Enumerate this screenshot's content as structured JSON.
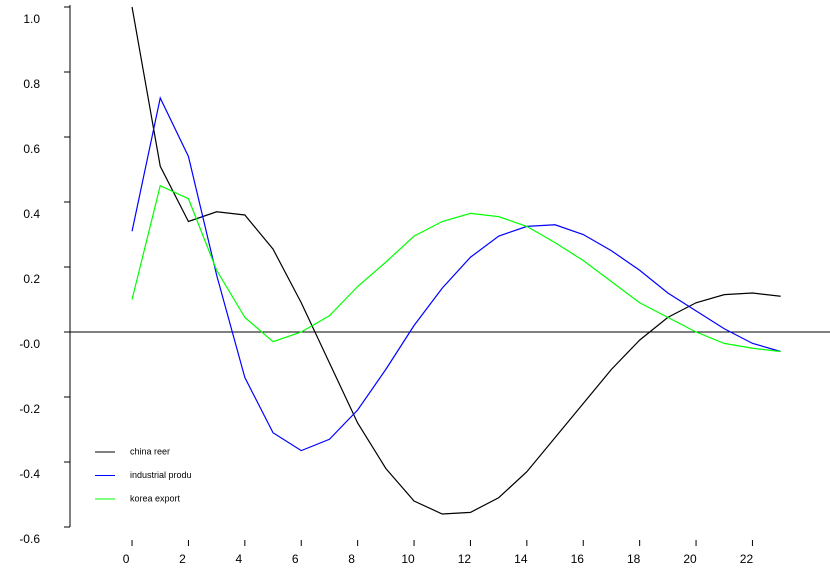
{
  "chart_data": {
    "type": "line",
    "x": [
      0,
      1,
      2,
      3,
      4,
      5,
      6,
      7,
      8,
      9,
      10,
      11,
      12,
      13,
      14,
      15,
      16,
      17,
      18,
      19,
      20,
      21,
      22,
      23
    ],
    "series": [
      {
        "name": "china reer",
        "color": "#000000",
        "values": [
          1.0,
          0.51,
          0.34,
          0.37,
          0.36,
          0.255,
          0.09,
          -0.095,
          -0.28,
          -0.42,
          -0.52,
          -0.56,
          -0.555,
          -0.51,
          -0.43,
          -0.325,
          -0.22,
          -0.115,
          -0.025,
          0.045,
          0.09,
          0.115,
          0.12,
          0.11
        ]
      },
      {
        "name": "industrial produ",
        "color": "#0000ff",
        "values": [
          0.31,
          0.72,
          0.54,
          0.175,
          -0.14,
          -0.31,
          -0.365,
          -0.33,
          -0.24,
          -0.115,
          0.02,
          0.135,
          0.23,
          0.295,
          0.325,
          0.33,
          0.3,
          0.25,
          0.19,
          0.12,
          0.065,
          0.01,
          -0.035,
          -0.06
        ]
      },
      {
        "name": "korea export",
        "color": "#00ff00",
        "values": [
          0.1,
          0.45,
          0.41,
          0.19,
          0.045,
          -0.03,
          0.0,
          0.05,
          0.14,
          0.215,
          0.295,
          0.34,
          0.365,
          0.355,
          0.325,
          0.275,
          0.22,
          0.155,
          0.09,
          0.045,
          0.0,
          -0.035,
          -0.05,
          -0.06
        ]
      }
    ],
    "xlim": [
      -2.2,
      24.75
    ],
    "xticks": [
      0,
      2,
      4,
      6,
      8,
      10,
      12,
      14,
      16,
      18,
      20,
      22
    ],
    "ylim": [
      -0.6,
      1.0
    ],
    "yticks": [
      {
        "value": 1.0,
        "label": "1.0"
      },
      {
        "value": 0.8,
        "label": "0.8"
      },
      {
        "value": 0.6,
        "label": "0.6"
      },
      {
        "value": 0.4,
        "label": "0.4"
      },
      {
        "value": 0.2,
        "label": "0.2"
      },
      {
        "value": 0,
        "label": "-0.0"
      },
      {
        "value": -0.2,
        "label": "-0.2"
      },
      {
        "value": -0.4,
        "label": "-0.4"
      },
      {
        "value": -0.6,
        "label": "-0.6"
      }
    ],
    "legend": "lower left"
  }
}
